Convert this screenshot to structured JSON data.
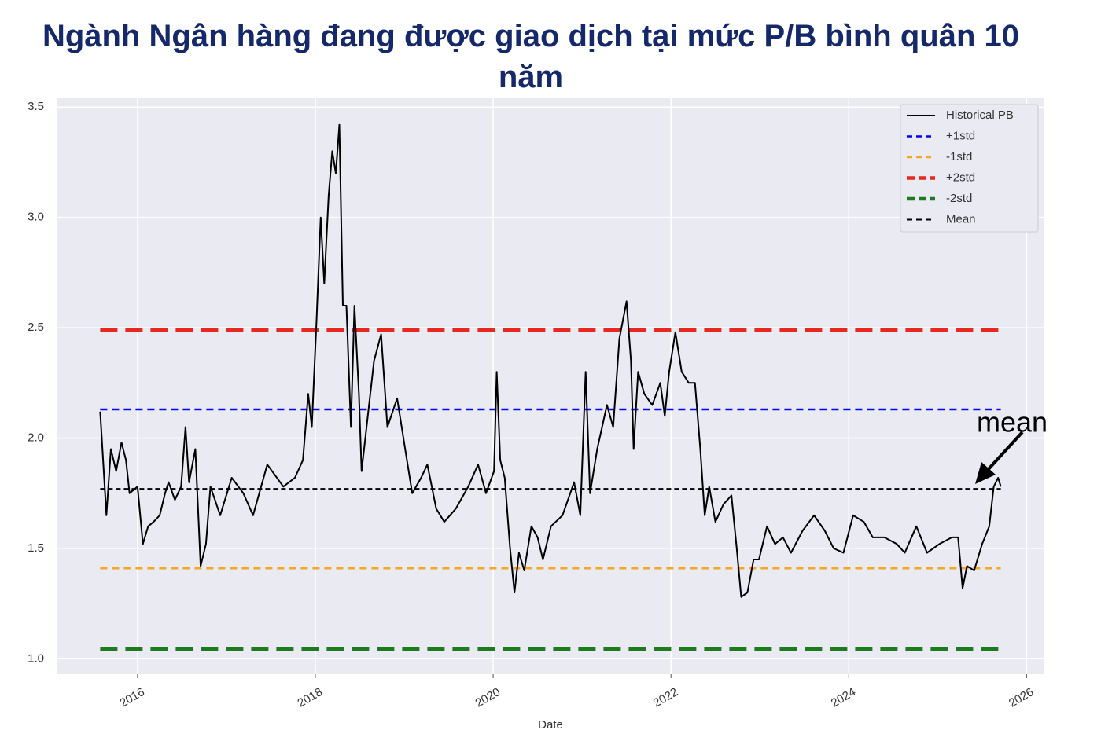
{
  "chart_data": {
    "type": "line",
    "title": "Ngành Ngân hàng đang được giao dịch tại mức P/B bình quân 10 năm",
    "x_label": "Date",
    "xlim": [
      2015.09,
      2026.2
    ],
    "xticks": [
      2016,
      2018,
      2020,
      2022,
      2024,
      2026
    ],
    "ylim": [
      0.93,
      3.54
    ],
    "yticks": [
      {
        "value": 1,
        "label": "1.0"
      },
      1.5,
      {
        "value": 2,
        "label": "2.0"
      },
      2.5,
      {
        "value": 3,
        "label": "3.0"
      },
      3.5
    ],
    "grid": true,
    "legend": "upper right",
    "annotation": {
      "text": "mean"
    },
    "series": [
      {
        "name": "Historical PB",
        "color": "#000000",
        "dash": "solid",
        "x": [
          2015.58,
          2015.65,
          2015.7,
          2015.76,
          2015.82,
          2015.87,
          2015.91,
          2016.0,
          2016.06,
          2016.12,
          2016.18,
          2016.25,
          2016.31,
          2016.35,
          2016.42,
          2016.49,
          2016.54,
          2016.58,
          2016.65,
          2016.71,
          2016.77,
          2016.82,
          2016.93,
          2017.06,
          2017.19,
          2017.3,
          2017.46,
          2017.64,
          2017.77,
          2017.86,
          2017.92,
          2017.96,
          2018.01,
          2018.06,
          2018.1,
          2018.15,
          2018.19,
          2018.23,
          2018.27,
          2018.31,
          2018.35,
          2018.4,
          2018.44,
          2018.49,
          2018.52,
          2018.59,
          2018.66,
          2018.74,
          2018.81,
          2018.92,
          2019.01,
          2019.09,
          2019.19,
          2019.26,
          2019.36,
          2019.45,
          2019.58,
          2019.72,
          2019.83,
          2019.92,
          2020.01,
          2020.04,
          2020.08,
          2020.13,
          2020.19,
          2020.24,
          2020.29,
          2020.35,
          2020.43,
          2020.5,
          2020.56,
          2020.65,
          2020.78,
          2020.91,
          2020.98,
          2021.04,
          2021.09,
          2021.17,
          2021.28,
          2021.35,
          2021.42,
          2021.5,
          2021.55,
          2021.58,
          2021.63,
          2021.7,
          2021.79,
          2021.88,
          2021.93,
          2021.98,
          2022.05,
          2022.12,
          2022.2,
          2022.27,
          2022.33,
          2022.38,
          2022.43,
          2022.5,
          2022.59,
          2022.68,
          2022.74,
          2022.79,
          2022.86,
          2022.93,
          2022.99,
          2023.08,
          2023.17,
          2023.26,
          2023.35,
          2023.48,
          2023.61,
          2023.73,
          2023.83,
          2023.94,
          2024.05,
          2024.17,
          2024.27,
          2024.4,
          2024.54,
          2024.63,
          2024.76,
          2024.88,
          2025.02,
          2025.16,
          2025.23,
          2025.28,
          2025.33,
          2025.41,
          2025.5,
          2025.58,
          2025.63,
          2025.68,
          2025.71
        ],
        "values": [
          2.12,
          1.65,
          1.95,
          1.85,
          1.98,
          1.9,
          1.75,
          1.78,
          1.52,
          1.6,
          1.62,
          1.65,
          1.75,
          1.8,
          1.72,
          1.78,
          2.05,
          1.8,
          1.95,
          1.42,
          1.52,
          1.78,
          1.65,
          1.82,
          1.75,
          1.65,
          1.88,
          1.78,
          1.82,
          1.9,
          2.2,
          2.05,
          2.5,
          3.0,
          2.7,
          3.1,
          3.3,
          3.2,
          3.42,
          2.6,
          2.6,
          2.05,
          2.6,
          2.2,
          1.85,
          2.1,
          2.35,
          2.47,
          2.05,
          2.18,
          1.95,
          1.75,
          1.82,
          1.88,
          1.68,
          1.62,
          1.68,
          1.78,
          1.88,
          1.75,
          1.85,
          2.3,
          1.9,
          1.82,
          1.5,
          1.3,
          1.48,
          1.4,
          1.6,
          1.55,
          1.45,
          1.6,
          1.65,
          1.8,
          1.65,
          2.3,
          1.75,
          1.95,
          2.15,
          2.05,
          2.45,
          2.62,
          2.35,
          1.95,
          2.3,
          2.2,
          2.15,
          2.25,
          2.1,
          2.3,
          2.48,
          2.3,
          2.25,
          2.25,
          1.95,
          1.65,
          1.78,
          1.62,
          1.7,
          1.74,
          1.5,
          1.28,
          1.3,
          1.45,
          1.45,
          1.6,
          1.52,
          1.55,
          1.48,
          1.58,
          1.65,
          1.58,
          1.5,
          1.48,
          1.65,
          1.62,
          1.55,
          1.55,
          1.52,
          1.48,
          1.6,
          1.48,
          1.52,
          1.55,
          1.55,
          1.32,
          1.42,
          1.4,
          1.52,
          1.6,
          1.78,
          1.82,
          1.78
        ]
      },
      {
        "name": "+1std",
        "color": "#0000ff",
        "dash": "dashed",
        "x": [
          2015.58,
          2025.71
        ],
        "values": [
          2.13,
          2.13
        ]
      },
      {
        "name": "-1std",
        "color": "#f5a623",
        "dash": "dashed",
        "x": [
          2015.58,
          2025.71
        ],
        "values": [
          1.41,
          1.41
        ]
      },
      {
        "name": "+2std",
        "color": "#e8281e",
        "dash": "thick",
        "x": [
          2015.58,
          2025.71
        ],
        "values": [
          2.49,
          2.49
        ]
      },
      {
        "name": "-2std",
        "color": "#1e7a1e",
        "dash": "thick",
        "x": [
          2015.58,
          2025.71
        ],
        "values": [
          1.045,
          1.045
        ]
      },
      {
        "name": "Mean",
        "color": "#000000",
        "dash": "dotted",
        "x": [
          2015.58,
          2025.71
        ],
        "values": [
          1.77,
          1.77
        ]
      }
    ]
  }
}
